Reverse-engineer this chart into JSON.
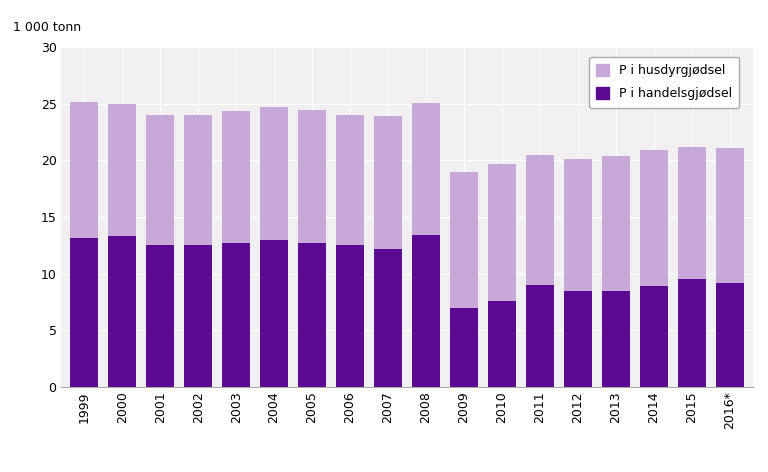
{
  "years": [
    "1999",
    "2000",
    "2001",
    "2002",
    "2003",
    "2004",
    "2005",
    "2006",
    "2007",
    "2008",
    "2009",
    "2010",
    "2011",
    "2012",
    "2013",
    "2014",
    "2015",
    "2016*"
  ],
  "handelsgjødsel": [
    13.2,
    13.3,
    12.5,
    12.5,
    12.7,
    13.0,
    12.7,
    12.5,
    12.2,
    13.4,
    7.0,
    7.6,
    9.0,
    8.5,
    8.5,
    8.9,
    9.5,
    9.2
  ],
  "husdyrgjødsel": [
    12.0,
    11.7,
    11.5,
    11.5,
    11.7,
    11.7,
    11.8,
    11.5,
    11.7,
    11.7,
    12.0,
    12.1,
    11.5,
    11.6,
    11.9,
    12.0,
    11.7,
    11.9
  ],
  "color_handels": "#5b0a91",
  "color_husdyr": "#c8a8d8",
  "unit_label": "1 000 tonn",
  "ylim": [
    0,
    30
  ],
  "yticks": [
    0,
    5,
    10,
    15,
    20,
    25,
    30
  ],
  "legend_labels": [
    "P i husdyrgjødsel",
    "P i handelsgjødsel"
  ],
  "background_color": "#ffffff",
  "plot_bg_color": "#f0f0f0",
  "grid_color": "#ffffff",
  "bar_width": 0.75
}
